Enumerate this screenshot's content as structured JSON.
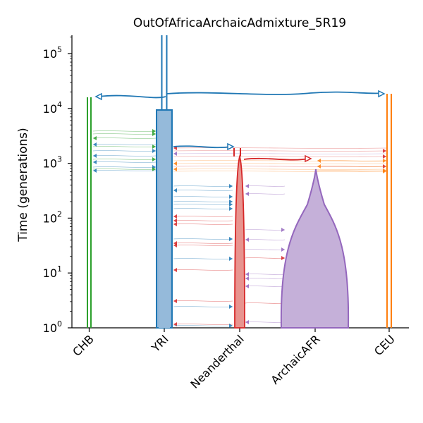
{
  "title": "OutOfAfricaArchaicAdmixture_5R19",
  "y_axis": {
    "label": "Time (generations)",
    "scale": "log",
    "range": [
      1,
      200000
    ],
    "ticks": [
      {
        "base": "10",
        "exp": "0"
      },
      {
        "base": "10",
        "exp": "1"
      },
      {
        "base": "10",
        "exp": "2"
      },
      {
        "base": "10",
        "exp": "3"
      },
      {
        "base": "10",
        "exp": "4"
      },
      {
        "base": "10",
        "exp": "5"
      }
    ]
  },
  "demes": [
    {
      "name": "CHB",
      "color": "#2ca02c"
    },
    {
      "name": "YRI",
      "color": "#1f77b4"
    },
    {
      "name": "Neanderthal",
      "color": "#d62728"
    },
    {
      "name": "ArchaicAFR",
      "color": "#9467bd"
    },
    {
      "name": "CEU",
      "color": "#ff7f0e"
    }
  ],
  "colors": {
    "chb": "#2ca02c",
    "yri": "#1f77b4",
    "neanderthal": "#d62728",
    "archaic_afr": "#9467bd",
    "ceu": "#ff7f0e",
    "axis": "#000000"
  }
}
